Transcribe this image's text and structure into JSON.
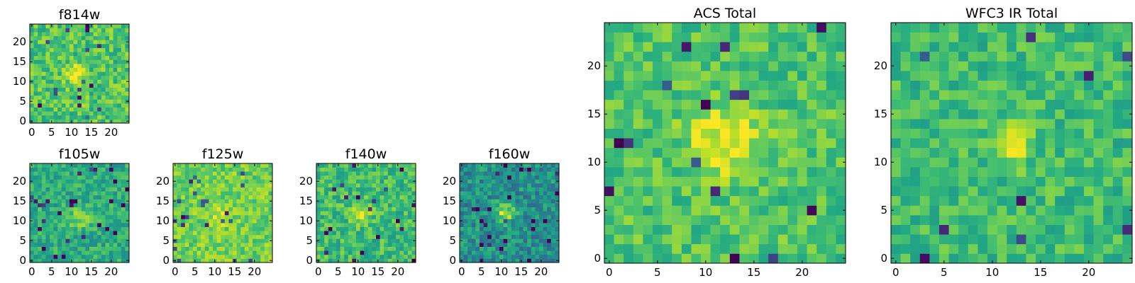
{
  "chart_data": [
    {
      "type": "heatmap",
      "title": "f814w",
      "colormap": "viridis",
      "grid_size": 25,
      "x_range": [
        0,
        24
      ],
      "y_range": [
        0,
        24
      ],
      "x_ticks": [
        0,
        5,
        10,
        15,
        20
      ],
      "y_ticks": [
        0,
        5,
        10,
        15,
        20
      ],
      "feature": "compact bright source near the centre",
      "source_center": [
        11,
        12
      ]
    },
    {
      "type": "heatmap",
      "title": "f105w",
      "colormap": "viridis",
      "grid_size": 25,
      "x_range": [
        0,
        24
      ],
      "y_range": [
        0,
        24
      ],
      "x_ticks": [
        0,
        5,
        10,
        15,
        20
      ],
      "y_ticks": [
        0,
        5,
        10,
        15,
        20
      ],
      "feature": "noisy with faint central source",
      "source_center": [
        12,
        11
      ]
    },
    {
      "type": "heatmap",
      "title": "f125w",
      "colormap": "viridis",
      "grid_size": 25,
      "x_range": [
        0,
        24
      ],
      "y_range": [
        0,
        24
      ],
      "x_ticks": [
        0,
        5,
        10,
        15,
        20
      ],
      "y_ticks": [
        0,
        5,
        10,
        15,
        20
      ],
      "feature": "noisy, mostly bright yellow-green",
      "source_center": [
        11,
        11
      ]
    },
    {
      "type": "heatmap",
      "title": "f140w",
      "colormap": "viridis",
      "grid_size": 25,
      "x_range": [
        0,
        24
      ],
      "y_range": [
        0,
        24
      ],
      "x_ticks": [
        0,
        5,
        10,
        15,
        20
      ],
      "y_ticks": [
        0,
        5,
        10,
        15,
        20
      ],
      "feature": "noisy with faint central source",
      "source_center": [
        11,
        12
      ]
    },
    {
      "type": "heatmap",
      "title": "f160w",
      "colormap": "viridis",
      "grid_size": 25,
      "x_range": [
        0,
        24
      ],
      "y_range": [
        0,
        24
      ],
      "x_ticks": [
        0,
        5,
        10,
        15,
        20
      ],
      "y_ticks": [
        0,
        5,
        10,
        15,
        20
      ],
      "feature": "darker background, bright central source",
      "source_center": [
        11,
        12
      ]
    },
    {
      "type": "heatmap",
      "title": "ACS Total",
      "colormap": "viridis",
      "grid_size": 25,
      "x_range": [
        0,
        24
      ],
      "y_range": [
        0,
        24
      ],
      "x_ticks": [
        0,
        5,
        10,
        15,
        20
      ],
      "y_ticks": [
        0,
        5,
        10,
        15,
        20
      ],
      "feature": "bright extended source centred near (12, 12)",
      "source_center": [
        12,
        12
      ]
    },
    {
      "type": "heatmap",
      "title": "WFC3 IR Total",
      "colormap": "viridis",
      "grid_size": 25,
      "x_range": [
        0,
        24
      ],
      "y_range": [
        0,
        24
      ],
      "x_ticks": [
        0,
        5,
        10,
        15,
        20
      ],
      "y_ticks": [
        0,
        5,
        10,
        15,
        20
      ],
      "feature": "bright compact source near (12, 12)",
      "source_center": [
        12,
        12
      ]
    }
  ]
}
